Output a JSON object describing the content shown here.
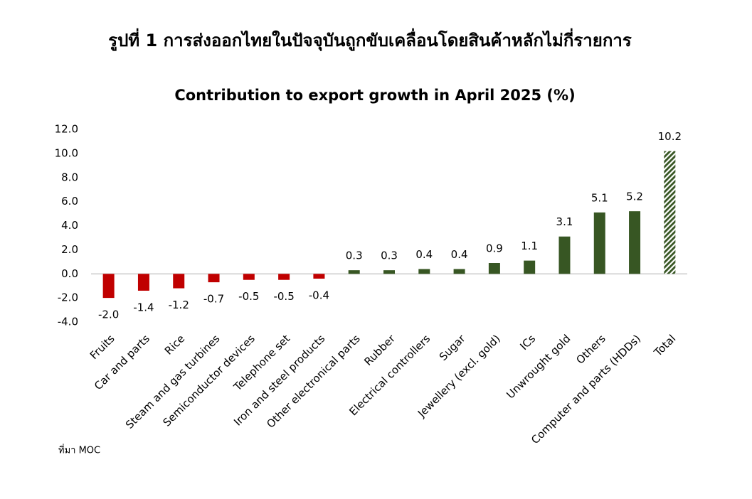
{
  "chart_data": {
    "type": "bar",
    "title": "รูปที่ 1 การส่งออกไทยในปัจจุบันถูกขับเคลื่อนโดยสินค้าหลักไม่กี่รายการ",
    "subtitle": "Contribution to export growth in April 2025 (%)",
    "source": "ที่มา MOC",
    "categories": [
      "Fruits",
      "Car and parts",
      "Rice",
      "Steam and gas turbines",
      "Semiconductor devices",
      "Telephone set",
      "Iron and steel products",
      "Other electronical parts",
      "Rubber",
      "Electrical controllers",
      "Sugar",
      "Jewellery (excl. gold)",
      "ICs",
      "Unwrought gold",
      "Others",
      "Computer and parts (HDDs)",
      "Total"
    ],
    "values": [
      -2.0,
      -1.4,
      -1.2,
      -0.7,
      -0.5,
      -0.5,
      -0.4,
      0.3,
      0.3,
      0.4,
      0.4,
      0.9,
      1.1,
      3.1,
      5.1,
      5.2,
      10.2
    ],
    "value_labels": [
      "-2.0",
      "-1.4",
      "-1.2",
      "-0.7",
      "-0.5",
      "-0.5",
      "-0.4",
      "0.3",
      "0.3",
      "0.4",
      "0.4",
      "0.9",
      "1.1",
      "3.1",
      "5.1",
      "5.2",
      "10.2"
    ],
    "color": "#375623",
    "negative_color": "#c00000",
    "last_bar_hatched": true,
    "ylim": [
      -4,
      12
    ],
    "yticks": [
      {
        "value": -4,
        "label": "-4.0"
      },
      {
        "value": -2,
        "label": "-2.0"
      },
      {
        "value": 0,
        "label": "0.0"
      },
      {
        "value": 2,
        "label": "2.0"
      },
      {
        "value": 4,
        "label": "4.0"
      },
      {
        "value": 6,
        "label": "6.0"
      },
      {
        "value": 8,
        "label": "8.0"
      },
      {
        "value": 10,
        "label": "10.0"
      },
      {
        "value": 12,
        "label": "12.0"
      }
    ],
    "grid": false
  }
}
